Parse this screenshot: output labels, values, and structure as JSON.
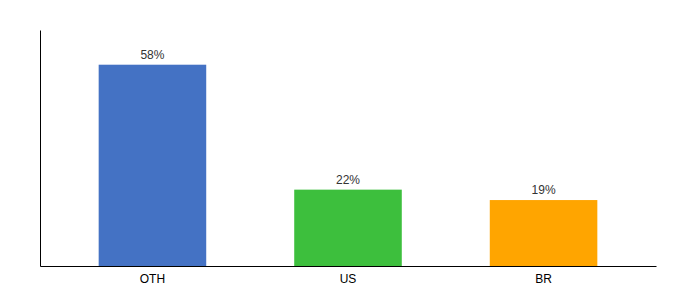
{
  "chart_data": {
    "type": "bar",
    "categories": [
      "OTH",
      "US",
      "BR"
    ],
    "values": [
      58,
      22,
      19
    ],
    "value_labels": [
      "58%",
      "22%",
      "19%"
    ],
    "colors": [
      "#4472C4",
      "#3DBF3D",
      "#FFA500"
    ],
    "ylim": [
      0,
      68
    ],
    "grid": false,
    "tick_labels": "x"
  }
}
